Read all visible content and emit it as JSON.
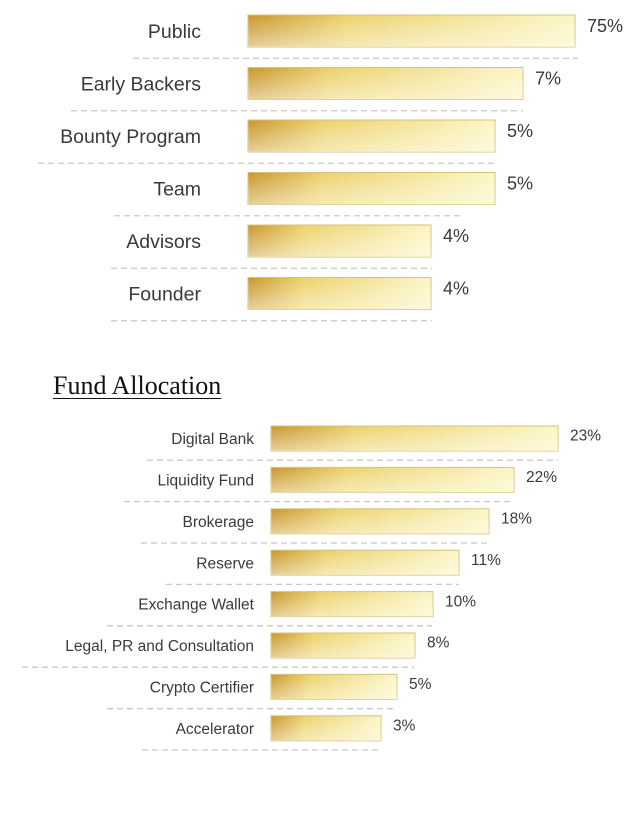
{
  "colors": {
    "bar_dark": "#c9952b",
    "bar_mid": "#ecd26b",
    "bar_light_top": "#fbf6c4",
    "bar_light_bottom": "#fffdf0",
    "bar_border": "#d6c27a",
    "divider": "#c8c8c8"
  },
  "section_title": "Fund Allocation",
  "chart_data": [
    {
      "type": "bar",
      "orientation": "horizontal",
      "title": "",
      "categories": [
        "Public",
        "Early Backers",
        "Bounty Program",
        "Team",
        "Advisors",
        "Founder"
      ],
      "values": [
        75,
        7,
        5,
        5,
        4,
        4
      ],
      "value_labels": [
        "75%",
        "7%",
        "5%",
        "5%",
        "4%",
        "4%"
      ],
      "xlabel": "",
      "ylabel": "",
      "grid": false,
      "legend": "none"
    },
    {
      "type": "bar",
      "orientation": "horizontal",
      "title": "Fund Allocation",
      "categories": [
        "Digital Bank",
        "Liquidity Fund",
        "Brokerage",
        "Reserve",
        "Exchange Wallet",
        "Legal, PR and Consultation",
        "Crypto Certifier",
        "Accelerator"
      ],
      "values": [
        23,
        22,
        18,
        11,
        10,
        8,
        5,
        3
      ],
      "value_labels": [
        "23%",
        "22%",
        "18%",
        "11%",
        "10%",
        "8%",
        "5%",
        "3%"
      ],
      "xlabel": "",
      "ylabel": "",
      "grid": false,
      "legend": "none"
    }
  ]
}
